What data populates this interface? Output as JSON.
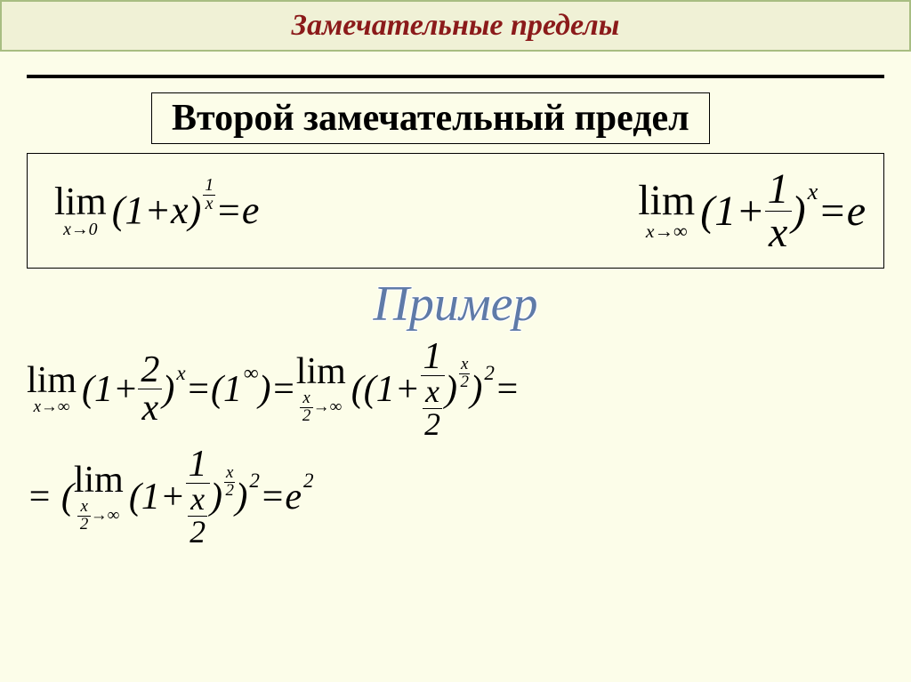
{
  "colors": {
    "background": "#fcfde9",
    "title_bg": "#f0f1d6",
    "title_border": "#a8bd82",
    "title_text": "#8b1a1a",
    "hr": "#000000",
    "example_color": "#5f7ba8",
    "math_color": "#000000"
  },
  "fonts": {
    "title_size": 34,
    "subtitle_size": 42,
    "example_size": 56,
    "formula_main_size": 44,
    "example_row_size": 42
  },
  "title": "Замечательные пределы",
  "subtitle": "Второй замечательный предел",
  "formula1": {
    "lim": "lim",
    "sub": "x→0",
    "open": "(1",
    "plus": " + ",
    "var": "x",
    "close": ")",
    "exp_num": "1",
    "exp_den": "x",
    "eq": " = ",
    "rhs": "e"
  },
  "formula2": {
    "lim": "lim",
    "sub": "x→∞",
    "open": "(1",
    "plus": " + ",
    "frac_num": "1",
    "frac_den": "x",
    "close": ")",
    "exp": "x",
    "eq": " = ",
    "rhs": "e"
  },
  "example_label": "Пример",
  "example": {
    "row1": {
      "p1_lim": "lim",
      "p1_sub": "x→∞",
      "p1_open": "(1",
      "p1_plus": " + ",
      "p1_num": "2",
      "p1_den": "x",
      "p1_close": ")",
      "p1_exp": "x",
      "eq1": " = ",
      "indet_open": "(1",
      "indet_exp": "∞",
      "indet_close": ")",
      "eq2": " = ",
      "p2_lim": "lim",
      "p2_sub_num": "x",
      "p2_sub_den": "2",
      "p2_sub_arrow": "→∞",
      "p2_oopen": "((1",
      "p2_plus": " + ",
      "p2_num": "1",
      "p2_den_num": "x",
      "p2_den_den": "2",
      "p2_close1": ")",
      "p2_exp1_num": "x",
      "p2_exp1_den": "2",
      "p2_close2": ")",
      "p2_exp2": "2",
      "eq3": " ="
    },
    "row2": {
      "eq0": "= (",
      "lim": "lim",
      "sub_num": "x",
      "sub_den": "2",
      "sub_arrow": "→∞",
      "open": "(1",
      "plus": " + ",
      "num": "1",
      "den_num": "x",
      "den_den": "2",
      "close1": ")",
      "exp1_num": "x",
      "exp1_den": "2",
      "close2": ")",
      "exp2": "2",
      "eq1": " = ",
      "rhs_base": "e",
      "rhs_exp": "2"
    }
  }
}
